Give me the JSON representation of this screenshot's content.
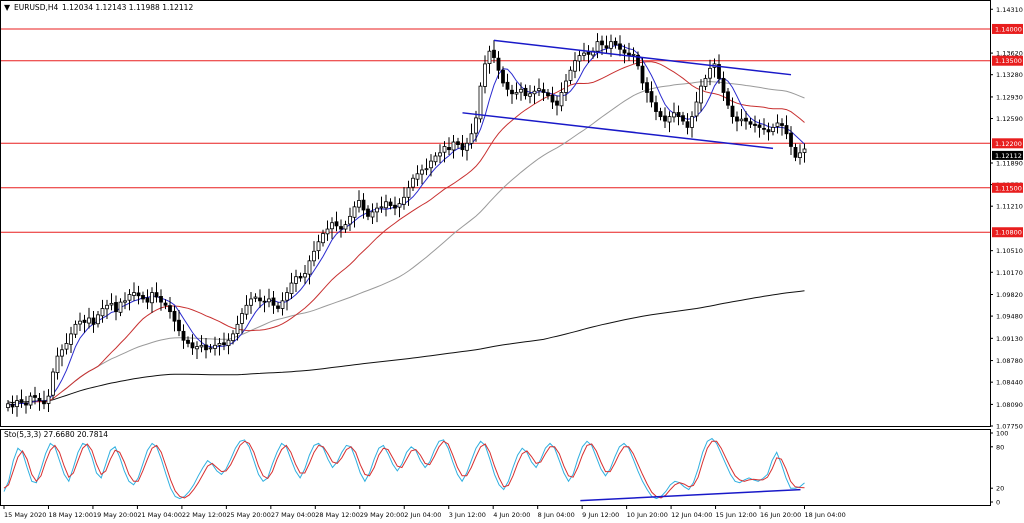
{
  "symbol": {
    "name": "EURUSD,H4",
    "ohlc": "1.12034 1.12143 1.11988 1.12112"
  },
  "colors": {
    "bull": "#ffffff",
    "bear": "#000000",
    "hline": "#e81e1e",
    "tagbg": "#e81e1e",
    "curtagbg": "#000000",
    "channel": "#1919c8",
    "ma_fast": "#2b2bcf",
    "ma_mid": "#c83030",
    "ma_slow": "#9a9a9a",
    "ma_long": "#101010",
    "stoch_main": "#30b0e0",
    "stoch_signal": "#d83030",
    "stoch_div": "#1919c8"
  },
  "chart_data": {
    "type": "candlestick",
    "title": "EURUSD,H4",
    "ylim": [
      1.0775,
      1.1444
    ],
    "yticks": [
      "1.14310",
      "1.13620",
      "1.13280",
      "1.12930",
      "1.12590",
      "1.11890",
      "1.11550",
      "1.11210",
      "1.10510",
      "1.10170",
      "1.09820",
      "1.09480",
      "1.09130",
      "1.08780",
      "1.08440",
      "1.08090",
      "1.07750"
    ],
    "xticks": [
      "15 May 2020",
      "18 May 12:00",
      "19 May 20:00",
      "21 May 04:00",
      "22 May 12:00",
      "25 May 20:00",
      "27 May 04:00",
      "28 May 12:00",
      "29 May 20:00",
      "2 Jun 04:00",
      "3 Jun 12:00",
      "4 Jun 20:00",
      "8 Jun 04:00",
      "9 Jun 12:00",
      "10 Jun 20:00",
      "12 Jun 04:00",
      "15 Jun 12:00",
      "16 Jun 20:00",
      "18 Jun 04:00"
    ],
    "levels": [
      {
        "label": "1.14000",
        "value": 1.14
      },
      {
        "label": "1.13500",
        "value": 1.135
      },
      {
        "label": "1.12200",
        "value": 1.122
      },
      {
        "label": "1.11500",
        "value": 1.115
      },
      {
        "label": "1.10800",
        "value": 1.108
      }
    ],
    "current_price": {
      "label": "1.12112",
      "value": 1.12112
    },
    "closes": [
      1.081,
      1.0805,
      1.0815,
      1.0812,
      1.0808,
      1.0822,
      1.082,
      1.0815,
      1.081,
      1.0822,
      1.086,
      1.0885,
      1.0895,
      1.0905,
      1.092,
      1.0935,
      1.094,
      1.0938,
      1.0945,
      1.0935,
      1.095,
      1.096,
      1.0965,
      1.0968,
      1.0955,
      1.097,
      1.0972,
      1.0982,
      1.0985,
      1.098,
      1.0975,
      1.097,
      1.0985,
      1.0978,
      1.097,
      1.0965,
      1.0955,
      1.094,
      1.0925,
      1.091,
      1.0905,
      1.0898,
      1.09,
      1.0902,
      1.0895,
      1.0898,
      1.0902,
      1.0905,
      1.0903,
      1.091,
      1.092,
      1.0935,
      1.0952,
      1.0965,
      1.0975,
      1.0978,
      1.0972,
      1.097,
      1.0975,
      1.0965,
      1.096,
      1.0972,
      1.0985,
      1.1,
      1.101,
      1.1008,
      1.1015,
      1.1035,
      1.105,
      1.1065,
      1.1078,
      1.1085,
      1.1095,
      1.109,
      1.1085,
      1.1092,
      1.1105,
      1.112,
      1.113,
      1.1115,
      1.1105,
      1.1112,
      1.1118,
      1.112,
      1.1128,
      1.1122,
      1.1118,
      1.1125,
      1.1135,
      1.115,
      1.1165,
      1.1172,
      1.1178,
      1.118,
      1.1192,
      1.12,
      1.1205,
      1.1215,
      1.121,
      1.1222,
      1.1218,
      1.121,
      1.122,
      1.1235,
      1.126,
      1.131,
      1.1345,
      1.1365,
      1.1355,
      1.1335,
      1.1315,
      1.1305,
      1.1298,
      1.13,
      1.1305,
      1.1295,
      1.1298,
      1.1302,
      1.1306,
      1.13,
      1.1295,
      1.1285,
      1.128,
      1.13,
      1.1318,
      1.1335,
      1.135,
      1.1358,
      1.1362,
      1.136,
      1.1365,
      1.138,
      1.1375,
      1.137,
      1.138,
      1.1375,
      1.1368,
      1.1362,
      1.1358,
      1.136,
      1.1342,
      1.1315,
      1.13,
      1.1285,
      1.127,
      1.1262,
      1.1255,
      1.1262,
      1.1268,
      1.1262,
      1.1255,
      1.1245,
      1.1262,
      1.1285,
      1.131,
      1.1322,
      1.1338,
      1.1345,
      1.1322,
      1.13,
      1.128,
      1.1262,
      1.1255,
      1.1258,
      1.1255,
      1.125,
      1.1248,
      1.1245,
      1.1242,
      1.1238,
      1.1245,
      1.1252,
      1.1248,
      1.1235,
      1.1215,
      1.1198,
      1.1205,
      1.1211
    ],
    "stoch_label": "Sto(5,3,3) 27.6680 20.7814",
    "stoch_ylim": [
      0,
      100
    ],
    "stoch_yticks": [
      100,
      80,
      20,
      0
    ],
    "stoch_main": [
      15,
      30,
      60,
      78,
      72,
      50,
      30,
      28,
      48,
      70,
      85,
      80,
      60,
      40,
      30,
      50,
      72,
      85,
      82,
      65,
      42,
      35,
      55,
      75,
      80,
      65,
      45,
      30,
      25,
      35,
      55,
      75,
      85,
      80,
      62,
      40,
      20,
      8,
      5,
      8,
      15,
      25,
      38,
      50,
      60,
      55,
      45,
      40,
      48,
      62,
      78,
      88,
      90,
      80,
      60,
      40,
      30,
      35,
      55,
      72,
      85,
      80,
      62,
      45,
      35,
      48,
      68,
      82,
      85,
      78,
      62,
      50,
      58,
      72,
      82,
      80,
      62,
      42,
      30,
      42,
      62,
      78,
      82,
      70,
      55,
      45,
      55,
      72,
      80,
      75,
      60,
      50,
      58,
      75,
      88,
      90,
      78,
      58,
      40,
      30,
      42,
      60,
      78,
      88,
      82,
      62,
      40,
      25,
      18,
      30,
      50,
      68,
      78,
      72,
      58,
      50,
      62,
      78,
      85,
      78,
      60,
      42,
      30,
      40,
      62,
      80,
      88,
      82,
      65,
      48,
      38,
      48,
      65,
      80,
      85,
      78,
      62,
      45,
      30,
      18,
      8,
      5,
      8,
      15,
      25,
      30,
      28,
      22,
      18,
      28,
      48,
      72,
      88,
      92,
      85,
      70,
      55,
      40,
      30,
      28,
      32,
      35,
      32,
      30,
      34,
      40,
      60,
      72,
      55,
      35,
      20,
      20,
      22,
      27.668
    ],
    "stoch_signal": [
      20,
      25,
      45,
      65,
      74,
      62,
      40,
      30,
      38,
      58,
      75,
      82,
      72,
      52,
      36,
      42,
      60,
      78,
      84,
      75,
      55,
      40,
      45,
      62,
      75,
      72,
      58,
      40,
      30,
      30,
      45,
      62,
      78,
      82,
      72,
      52,
      32,
      16,
      8,
      6,
      10,
      18,
      28,
      40,
      52,
      56,
      50,
      44,
      45,
      54,
      68,
      82,
      88,
      85,
      72,
      52,
      38,
      34,
      44,
      62,
      76,
      82,
      72,
      55,
      42,
      42,
      56,
      72,
      82,
      80,
      70,
      58,
      56,
      64,
      76,
      80,
      72,
      54,
      40,
      38,
      50,
      68,
      78,
      76,
      64,
      52,
      50,
      62,
      74,
      76,
      68,
      56,
      54,
      66,
      80,
      88,
      84,
      68,
      50,
      38,
      38,
      50,
      66,
      80,
      84,
      72,
      52,
      35,
      22,
      24,
      38,
      56,
      70,
      74,
      66,
      56,
      58,
      70,
      80,
      80,
      70,
      52,
      38,
      36,
      50,
      68,
      82,
      84,
      74,
      58,
      44,
      44,
      56,
      70,
      80,
      80,
      70,
      55,
      40,
      26,
      14,
      8,
      6,
      10,
      18,
      25,
      28,
      26,
      22,
      24,
      36,
      58,
      78,
      88,
      88,
      78,
      64,
      50,
      38,
      32,
      30,
      32,
      33,
      32,
      32,
      36,
      48,
      64,
      62,
      48,
      30,
      22,
      21,
      20.7814
    ],
    "stoch_divergence": {
      "from": [
        0.72,
        2
      ],
      "to": [
        0.995,
        18
      ]
    },
    "channel_upper": {
      "from": [
        108,
        1.1382
      ],
      "to": [
        174,
        1.1328
      ]
    },
    "channel_lower": {
      "from": [
        101,
        1.1268
      ],
      "to": [
        170,
        1.1212
      ]
    }
  }
}
